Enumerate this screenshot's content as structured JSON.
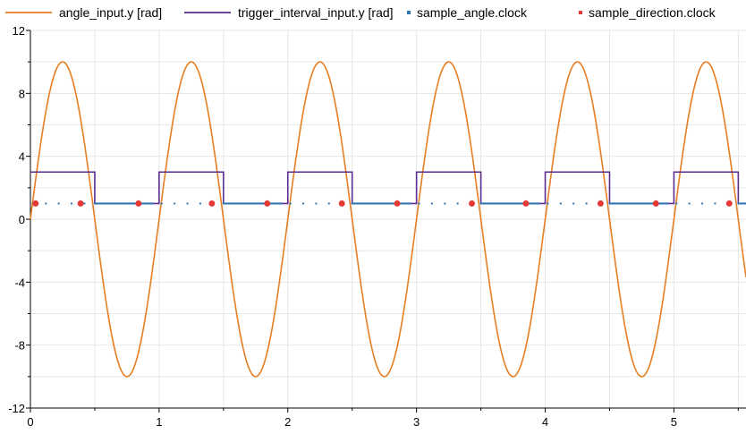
{
  "chart_data": {
    "type": "line",
    "title": "",
    "xlabel": "",
    "ylabel": "",
    "xlim": [
      0,
      5.56
    ],
    "ylim": [
      -12,
      12
    ],
    "x_ticks": [
      0,
      1,
      2,
      3,
      4,
      5
    ],
    "y_ticks": [
      -12,
      -8,
      -4,
      0,
      4,
      8,
      12
    ],
    "x_tick_labels": [
      "0",
      "1",
      "2",
      "3",
      "4",
      "5"
    ],
    "y_tick_labels": [
      "-12",
      "-8",
      "-4",
      "0",
      "4",
      "8",
      "12"
    ],
    "grid": true,
    "legend_position": "top",
    "series": [
      {
        "name": "angle_input.y [rad]",
        "kind": "line",
        "color": "#e67e22",
        "function": "10*sin(2*pi*t)",
        "amplitude": 10,
        "frequency": 1
      },
      {
        "name": "trigger_interval_input.y [rad]",
        "kind": "step",
        "color": "#5b2c8f",
        "points": [
          [
            0.0,
            3
          ],
          [
            0.5,
            3
          ],
          [
            0.5,
            1
          ],
          [
            1.0,
            1
          ],
          [
            1.0,
            3
          ],
          [
            1.5,
            3
          ],
          [
            1.5,
            1
          ],
          [
            2.0,
            1
          ],
          [
            2.0,
            3
          ],
          [
            2.5,
            3
          ],
          [
            2.5,
            1
          ],
          [
            3.0,
            1
          ],
          [
            3.0,
            3
          ],
          [
            3.5,
            3
          ],
          [
            3.5,
            1
          ],
          [
            4.0,
            1
          ],
          [
            4.0,
            3
          ],
          [
            4.5,
            3
          ],
          [
            4.5,
            1
          ],
          [
            5.0,
            1
          ],
          [
            5.0,
            3
          ],
          [
            5.5,
            3
          ],
          [
            5.5,
            1
          ],
          [
            5.56,
            1
          ]
        ]
      },
      {
        "name": "sample_angle.clock",
        "kind": "markers",
        "marker": "square",
        "color": "#2e75b6",
        "y": 1,
        "x_segments": [
          [
            0.02,
            0.46,
            0.1
          ],
          [
            0.5,
            0.95,
            0.01
          ],
          [
            1.02,
            1.46,
            0.1
          ],
          [
            1.5,
            1.95,
            0.01
          ],
          [
            2.02,
            2.46,
            0.1
          ],
          [
            2.5,
            2.95,
            0.01
          ],
          [
            3.02,
            3.46,
            0.1
          ],
          [
            3.5,
            3.95,
            0.01
          ],
          [
            4.02,
            4.46,
            0.1
          ],
          [
            4.5,
            4.95,
            0.01
          ],
          [
            5.02,
            5.46,
            0.1
          ],
          [
            5.5,
            5.56,
            0.01
          ]
        ]
      },
      {
        "name": "sample_direction.clock",
        "kind": "markers",
        "marker": "circle",
        "color": "#e53935",
        "x": [
          0.04,
          0.39,
          0.84,
          1.41,
          1.84,
          2.42,
          2.85,
          3.43,
          3.85,
          4.43,
          4.86,
          5.43
        ],
        "y": [
          1,
          1,
          1,
          1,
          1,
          1,
          1,
          1,
          1,
          1,
          1,
          1
        ]
      }
    ]
  }
}
